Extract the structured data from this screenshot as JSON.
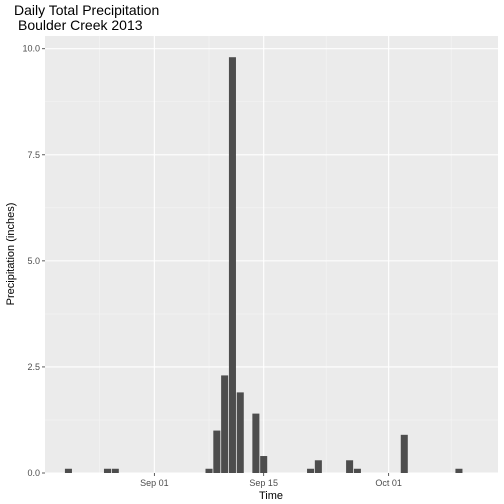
{
  "chart_data": {
    "type": "bar",
    "title": "Daily Total Precipitation",
    "subtitle": "Boulder Creek 2013",
    "xlabel": "Time",
    "ylabel": "Precipitation (inches)",
    "x_type": "date",
    "xlim": [
      "2013-08-18",
      "2013-10-15"
    ],
    "ylim": [
      0,
      10.3
    ],
    "x_ticks": [
      {
        "date": "2013-09-01",
        "label": "Sep 01"
      },
      {
        "date": "2013-09-15",
        "label": "Sep 15"
      },
      {
        "date": "2013-10-01",
        "label": "Oct 01"
      }
    ],
    "y_ticks": [
      {
        "value": 0,
        "label": "0.0"
      },
      {
        "value": 2.5,
        "label": "2.5"
      },
      {
        "value": 5,
        "label": "5.0"
      },
      {
        "value": 7.5,
        "label": "7.5"
      },
      {
        "value": 10,
        "label": "10.0"
      }
    ],
    "grid": true,
    "legend": "none",
    "colors": {
      "panel": "#ebebeb",
      "grid_major": "#ffffff",
      "grid_minor": "#f5f5f5",
      "bar": "#4d4d4d",
      "tick": "#333333"
    },
    "series": [
      {
        "x": [
          "2013-08-21",
          "2013-08-26",
          "2013-08-27",
          "2013-09-08",
          "2013-09-09",
          "2013-09-10",
          "2013-09-11",
          "2013-09-12",
          "2013-09-14",
          "2013-09-15",
          "2013-09-21",
          "2013-09-22",
          "2013-09-26",
          "2013-09-27",
          "2013-10-03",
          "2013-10-10"
        ],
        "values": [
          0.1,
          0.1,
          0.1,
          0.1,
          1.0,
          2.3,
          9.8,
          1.9,
          1.4,
          0.4,
          0.1,
          0.3,
          0.3,
          0.1,
          0.9,
          0.1
        ]
      }
    ]
  }
}
